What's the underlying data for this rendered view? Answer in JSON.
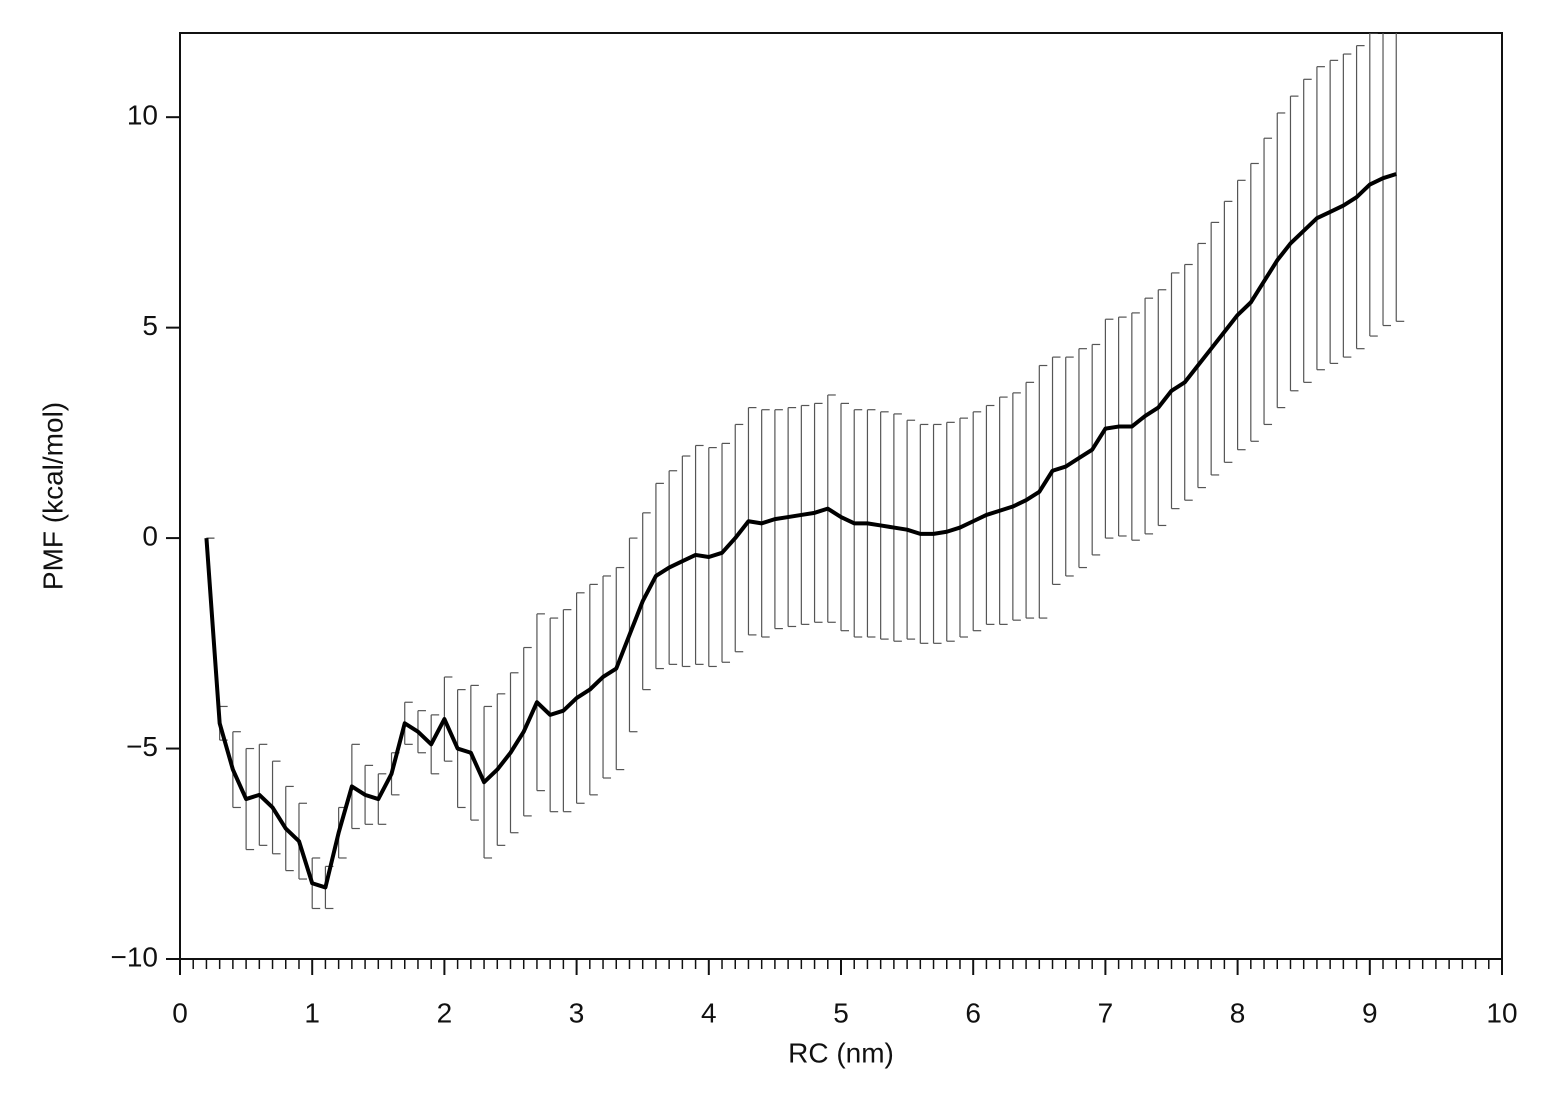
{
  "chart_data": {
    "type": "line",
    "xlabel": "RC (nm)",
    "ylabel": "PMF (kcal/mol)",
    "x": [
      0.2,
      0.3,
      0.4,
      0.5,
      0.6,
      0.7,
      0.8,
      0.9,
      1.0,
      1.1,
      1.2,
      1.3,
      1.4,
      1.5,
      1.6,
      1.7,
      1.8,
      1.9,
      2.0,
      2.1,
      2.2,
      2.3,
      2.4,
      2.5,
      2.6,
      2.7,
      2.8,
      2.9,
      3.0,
      3.1,
      3.2,
      3.3,
      3.4,
      3.5,
      3.6,
      3.7,
      3.8,
      3.9,
      4.0,
      4.1,
      4.2,
      4.3,
      4.4,
      4.5,
      4.6,
      4.7,
      4.8,
      4.9,
      5.0,
      5.1,
      5.2,
      5.3,
      5.4,
      5.5,
      5.6,
      5.7,
      5.8,
      5.9,
      6.0,
      6.1,
      6.2,
      6.3,
      6.4,
      6.5,
      6.6,
      6.7,
      6.8,
      6.9,
      7.0,
      7.1,
      7.2,
      7.3,
      7.4,
      7.5,
      7.6,
      7.7,
      7.8,
      7.9,
      8.0,
      8.1,
      8.2,
      8.3,
      8.4,
      8.5,
      8.6,
      8.7,
      8.8,
      8.9,
      9.0,
      9.1,
      9.2
    ],
    "series": [
      {
        "color": "#000000",
        "error_color": "#555555",
        "values": [
          0,
          -4.4,
          -5.5,
          -6.2,
          -6.1,
          -6.4,
          -6.9,
          -7.2,
          -8.2,
          -8.3,
          -7.0,
          -5.9,
          -6.1,
          -6.2,
          -5.6,
          -4.4,
          -4.6,
          -4.9,
          -4.3,
          -5.0,
          -5.1,
          -5.8,
          -5.5,
          -5.1,
          -4.6,
          -3.9,
          -4.2,
          -4.1,
          -3.8,
          -3.6,
          -3.3,
          -3.1,
          -2.3,
          -1.5,
          -0.9,
          -0.7,
          -0.55,
          -0.4,
          -0.45,
          -0.35,
          0,
          0.4,
          0.35,
          0.45,
          0.5,
          0.55,
          0.6,
          0.7,
          0.5,
          0.35,
          0.35,
          0.3,
          0.25,
          0.2,
          0.1,
          0.1,
          0.15,
          0.25,
          0.4,
          0.55,
          0.65,
          0.75,
          0.9,
          1.1,
          1.6,
          1.7,
          1.9,
          2.1,
          2.6,
          2.65,
          2.65,
          2.9,
          3.1,
          3.5,
          3.7,
          4.1,
          4.5,
          4.9,
          5.3,
          5.6,
          6.1,
          6.6,
          7.0,
          7.3,
          7.6,
          7.75,
          7.9,
          8.1,
          8.4,
          8.55,
          8.65
        ],
        "errors": [
          0,
          0.4,
          0.9,
          1.2,
          1.2,
          1.1,
          1.0,
          0.9,
          0.6,
          0.5,
          0.6,
          1.0,
          0.7,
          0.6,
          0.5,
          0.5,
          0.5,
          0.7,
          1.0,
          1.4,
          1.6,
          1.8,
          1.8,
          1.9,
          2.0,
          2.1,
          2.3,
          2.4,
          2.5,
          2.5,
          2.4,
          2.4,
          2.3,
          2.1,
          2.2,
          2.3,
          2.5,
          2.6,
          2.6,
          2.6,
          2.7,
          2.7,
          2.7,
          2.6,
          2.6,
          2.6,
          2.6,
          2.7,
          2.7,
          2.7,
          2.7,
          2.7,
          2.7,
          2.6,
          2.6,
          2.6,
          2.6,
          2.6,
          2.6,
          2.6,
          2.7,
          2.7,
          2.8,
          3.0,
          2.7,
          2.6,
          2.6,
          2.5,
          2.6,
          2.6,
          2.7,
          2.8,
          2.8,
          2.8,
          2.8,
          2.9,
          3.0,
          3.1,
          3.2,
          3.3,
          3.4,
          3.5,
          3.5,
          3.6,
          3.6,
          3.6,
          3.6,
          3.6,
          3.6,
          3.5,
          3.5
        ]
      }
    ],
    "xlim": [
      0,
      10
    ],
    "ylim": [
      -10,
      12
    ],
    "xticks": [
      0,
      1,
      2,
      3,
      4,
      5,
      6,
      7,
      8,
      9,
      10
    ],
    "yticks": [
      {
        "value": -10,
        "label": "−10"
      },
      {
        "value": -5,
        "label": "−5"
      },
      0,
      5,
      10
    ],
    "grid": false
  }
}
